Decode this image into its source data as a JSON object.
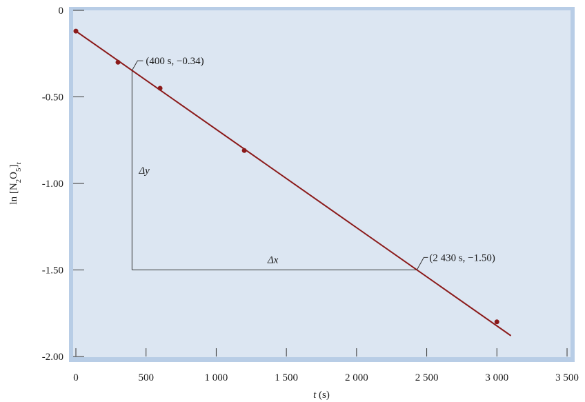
{
  "chart_data": {
    "type": "scatter",
    "title": "",
    "xlabel": "t (s)",
    "ylabel": "ln [N2O5]t",
    "xlim": [
      0,
      3500
    ],
    "ylim": [
      -2.0,
      0
    ],
    "x_ticks": [
      0,
      500,
      1000,
      1500,
      2000,
      2500,
      3000,
      3500
    ],
    "x_tick_labels": [
      "0",
      "500",
      "1 000",
      "1 500",
      "2 000",
      "2 500",
      "3 000",
      "3 500"
    ],
    "y_ticks": [
      0,
      -0.5,
      -1.0,
      -1.5,
      -2.0
    ],
    "y_tick_labels": [
      "0",
      "-0.50",
      "-1.00",
      "-1.50",
      "-2.00"
    ],
    "grid": false,
    "background_color": "#dce6f2",
    "frame_color": "#b8cde6",
    "series": [
      {
        "color": "#8b1a1a",
        "points": [
          {
            "x": 0,
            "y": -0.12
          },
          {
            "x": 300,
            "y": -0.3
          },
          {
            "x": 600,
            "y": -0.45
          },
          {
            "x": 1200,
            "y": -0.81
          },
          {
            "x": 3000,
            "y": -1.8
          }
        ]
      }
    ],
    "fit_line": {
      "x": [
        0,
        3100
      ],
      "y": [
        -0.12,
        -1.88
      ],
      "color": "#8b1a1a"
    },
    "annotations": [
      {
        "text": "(400 s, −0.34)",
        "x": 400,
        "y": -0.34
      },
      {
        "text": "(2 430 s, −1.50)",
        "x": 2430,
        "y": -1.5
      },
      {
        "text": "Δy"
      },
      {
        "text": "Δx"
      }
    ]
  }
}
